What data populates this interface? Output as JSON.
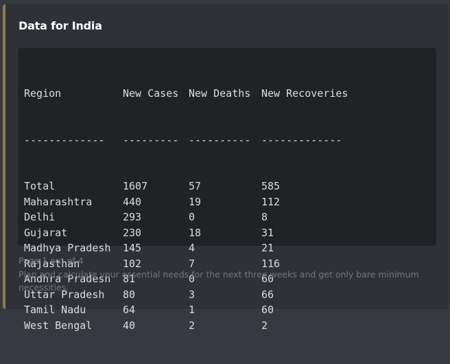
{
  "embed": {
    "title": "Data for India",
    "accent_color": "#8b7a57",
    "headers": [
      "Region",
      "New Cases",
      "New Deaths",
      "New Recoveries"
    ],
    "separators": [
      "-------------",
      "---------",
      "----------",
      "-------------"
    ],
    "rows": [
      [
        "Total",
        "1607",
        "57",
        "585"
      ],
      [
        "Maharashtra",
        "440",
        "19",
        "112"
      ],
      [
        "Delhi",
        "293",
        "0",
        "8"
      ],
      [
        "Gujarat",
        "230",
        "18",
        "31"
      ],
      [
        "Madhya Pradesh",
        "145",
        "4",
        "21"
      ],
      [
        "Rajasthan",
        "102",
        "7",
        "116"
      ],
      [
        "Andhra Pradesh",
        "81",
        "0",
        "60"
      ],
      [
        "Uttar Pradesh",
        "80",
        "3",
        "66"
      ],
      [
        "Tamil Nadu",
        "64",
        "1",
        "60"
      ],
      [
        "West Bengal",
        "40",
        "2",
        "2"
      ]
    ],
    "footer_page": "Page 1 out of 4",
    "footer_note": "Plan and calculate your essential needs for the next three weeks and get only bare minimum necessities."
  }
}
